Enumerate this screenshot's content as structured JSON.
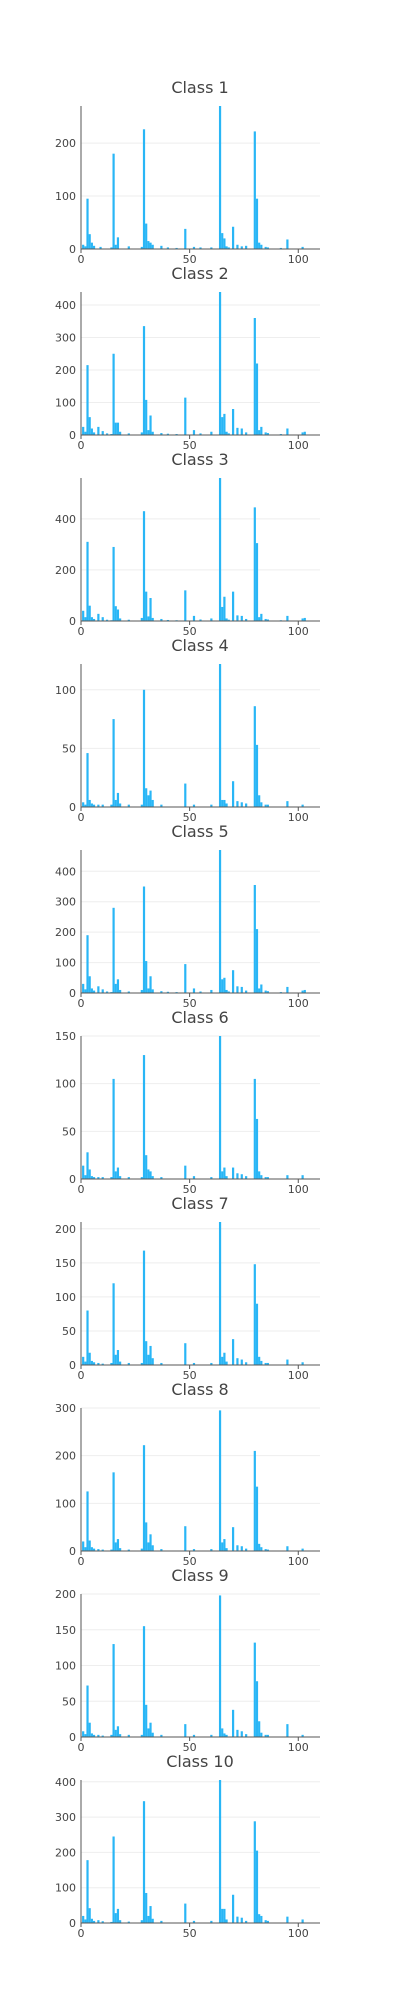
{
  "colors": {
    "bar": "#29b6f6",
    "grid": "#eeeeee",
    "axis": "#555555",
    "text": "#444444"
  },
  "chart_data": [
    {
      "type": "bar",
      "title": "Class 1",
      "xlim": [
        0,
        110
      ],
      "ylim": [
        0,
        270
      ],
      "yticks": [
        0,
        100,
        200
      ],
      "xticks": [
        0,
        50,
        100
      ],
      "grid": true,
      "x": [
        1,
        2,
        3,
        4,
        5,
        6,
        9,
        14,
        15,
        16,
        17,
        22,
        28,
        29,
        30,
        31,
        32,
        33,
        37,
        40,
        44,
        48,
        52,
        55,
        60,
        64,
        65,
        66,
        67,
        68,
        70,
        72,
        74,
        76,
        80,
        81,
        82,
        83,
        85,
        86,
        92,
        95,
        102
      ],
      "values": [
        8,
        5,
        95,
        28,
        12,
        6,
        4,
        3,
        180,
        8,
        22,
        5,
        4,
        226,
        48,
        15,
        12,
        8,
        6,
        3,
        2,
        38,
        4,
        3,
        3,
        270,
        30,
        20,
        5,
        3,
        42,
        8,
        5,
        6,
        222,
        95,
        12,
        8,
        4,
        3,
        2,
        18,
        4
      ]
    },
    {
      "type": "bar",
      "title": "Class 2",
      "xlim": [
        0,
        110
      ],
      "ylim": [
        0,
        440
      ],
      "yticks": [
        0,
        100,
        200,
        300,
        400
      ],
      "xticks": [
        0,
        50,
        100
      ],
      "grid": true,
      "x": [
        1,
        2,
        3,
        4,
        5,
        6,
        8,
        10,
        12,
        14,
        15,
        16,
        17,
        18,
        22,
        28,
        29,
        30,
        31,
        32,
        33,
        37,
        40,
        44,
        48,
        52,
        55,
        60,
        64,
        65,
        66,
        67,
        68,
        70,
        72,
        74,
        76,
        80,
        81,
        82,
        83,
        85,
        86,
        92,
        95,
        102,
        103
      ],
      "values": [
        25,
        10,
        215,
        55,
        20,
        8,
        25,
        12,
        5,
        3,
        250,
        38,
        38,
        10,
        5,
        8,
        335,
        108,
        15,
        60,
        10,
        6,
        4,
        3,
        115,
        15,
        5,
        10,
        440,
        55,
        65,
        10,
        5,
        80,
        22,
        20,
        8,
        360,
        220,
        15,
        25,
        8,
        6,
        3,
        20,
        8,
        10
      ]
    },
    {
      "type": "bar",
      "title": "Class 3",
      "xlim": [
        0,
        110
      ],
      "ylim": [
        0,
        560
      ],
      "yticks": [
        0,
        200,
        400
      ],
      "xticks": [
        0,
        50,
        100
      ],
      "grid": true,
      "x": [
        1,
        2,
        3,
        4,
        5,
        6,
        8,
        10,
        12,
        14,
        15,
        16,
        17,
        18,
        22,
        28,
        29,
        30,
        31,
        32,
        33,
        37,
        40,
        44,
        48,
        52,
        55,
        60,
        64,
        65,
        66,
        67,
        68,
        70,
        72,
        74,
        76,
        80,
        81,
        82,
        83,
        85,
        86,
        92,
        95,
        102,
        103
      ],
      "values": [
        40,
        15,
        310,
        60,
        15,
        8,
        28,
        15,
        5,
        3,
        290,
        58,
        45,
        10,
        5,
        12,
        430,
        115,
        18,
        90,
        12,
        8,
        4,
        3,
        120,
        20,
        6,
        10,
        560,
        55,
        95,
        10,
        5,
        115,
        22,
        20,
        8,
        445,
        305,
        15,
        28,
        8,
        6,
        3,
        20,
        10,
        12
      ]
    },
    {
      "type": "bar",
      "title": "Class 4",
      "xlim": [
        0,
        110
      ],
      "ylim": [
        0,
        122
      ],
      "yticks": [
        0,
        50,
        100
      ],
      "xticks": [
        0,
        50,
        100
      ],
      "grid": true,
      "x": [
        1,
        2,
        3,
        4,
        5,
        6,
        8,
        10,
        14,
        15,
        16,
        17,
        18,
        22,
        28,
        29,
        30,
        31,
        32,
        33,
        37,
        48,
        52,
        60,
        64,
        65,
        66,
        67,
        70,
        72,
        74,
        76,
        80,
        81,
        82,
        83,
        85,
        86,
        95,
        102
      ],
      "values": [
        4,
        2,
        46,
        6,
        3,
        2,
        2,
        2,
        2,
        75,
        6,
        12,
        3,
        2,
        2,
        100,
        16,
        10,
        14,
        6,
        2,
        20,
        2,
        2,
        122,
        6,
        6,
        3,
        22,
        5,
        4,
        3,
        86,
        53,
        10,
        4,
        2,
        2,
        5,
        2
      ]
    },
    {
      "type": "bar",
      "title": "Class 5",
      "xlim": [
        0,
        110
      ],
      "ylim": [
        0,
        470
      ],
      "yticks": [
        0,
        100,
        200,
        300,
        400
      ],
      "xticks": [
        0,
        50,
        100
      ],
      "grid": true,
      "x": [
        1,
        2,
        3,
        4,
        5,
        6,
        8,
        10,
        12,
        14,
        15,
        16,
        17,
        18,
        22,
        28,
        29,
        30,
        31,
        32,
        33,
        37,
        40,
        44,
        48,
        52,
        55,
        60,
        64,
        65,
        66,
        67,
        68,
        70,
        72,
        74,
        76,
        80,
        81,
        82,
        83,
        85,
        86,
        92,
        95,
        102,
        103
      ],
      "values": [
        30,
        12,
        190,
        55,
        15,
        8,
        22,
        12,
        5,
        3,
        280,
        30,
        45,
        10,
        5,
        10,
        350,
        105,
        15,
        55,
        12,
        6,
        4,
        3,
        95,
        15,
        5,
        10,
        470,
        45,
        50,
        10,
        5,
        75,
        22,
        20,
        8,
        355,
        210,
        15,
        28,
        8,
        6,
        3,
        20,
        8,
        10
      ]
    },
    {
      "type": "bar",
      "title": "Class 6",
      "xlim": [
        0,
        110
      ],
      "ylim": [
        0,
        150
      ],
      "yticks": [
        0,
        50,
        100,
        150
      ],
      "xticks": [
        0,
        50,
        100
      ],
      "grid": true,
      "x": [
        1,
        2,
        3,
        4,
        5,
        6,
        8,
        10,
        14,
        15,
        16,
        17,
        18,
        22,
        28,
        29,
        30,
        31,
        32,
        33,
        37,
        48,
        52,
        60,
        64,
        65,
        66,
        67,
        70,
        72,
        74,
        76,
        80,
        81,
        82,
        83,
        85,
        86,
        95,
        102
      ],
      "values": [
        14,
        4,
        28,
        10,
        3,
        2,
        2,
        2,
        2,
        105,
        8,
        12,
        3,
        2,
        2,
        130,
        25,
        10,
        8,
        3,
        2,
        14,
        3,
        2,
        150,
        8,
        12,
        3,
        12,
        6,
        5,
        3,
        105,
        63,
        8,
        4,
        2,
        2,
        4,
        4
      ]
    },
    {
      "type": "bar",
      "title": "Class 7",
      "xlim": [
        0,
        110
      ],
      "ylim": [
        0,
        210
      ],
      "yticks": [
        0,
        50,
        100,
        150,
        200
      ],
      "xticks": [
        0,
        50,
        100
      ],
      "grid": true,
      "x": [
        1,
        2,
        3,
        4,
        5,
        6,
        8,
        10,
        14,
        15,
        16,
        17,
        18,
        22,
        28,
        29,
        30,
        31,
        32,
        33,
        37,
        48,
        52,
        60,
        64,
        65,
        66,
        67,
        70,
        72,
        74,
        76,
        80,
        81,
        82,
        83,
        85,
        86,
        95,
        102
      ],
      "values": [
        12,
        5,
        80,
        18,
        6,
        4,
        3,
        2,
        3,
        120,
        15,
        22,
        5,
        3,
        3,
        168,
        35,
        15,
        28,
        10,
        3,
        32,
        3,
        3,
        210,
        12,
        18,
        5,
        38,
        10,
        8,
        4,
        148,
        90,
        12,
        6,
        3,
        3,
        8,
        4
      ]
    },
    {
      "type": "bar",
      "title": "Class 8",
      "xlim": [
        0,
        110
      ],
      "ylim": [
        0,
        300
      ],
      "yticks": [
        0,
        100,
        200,
        300
      ],
      "xticks": [
        0,
        50,
        100
      ],
      "grid": true,
      "x": [
        1,
        2,
        3,
        4,
        5,
        6,
        8,
        10,
        14,
        15,
        16,
        17,
        18,
        22,
        28,
        29,
        30,
        31,
        32,
        33,
        37,
        48,
        52,
        60,
        64,
        65,
        66,
        67,
        70,
        72,
        74,
        76,
        80,
        81,
        82,
        83,
        85,
        86,
        95,
        102
      ],
      "values": [
        20,
        8,
        125,
        22,
        8,
        5,
        4,
        3,
        3,
        165,
        18,
        25,
        6,
        3,
        5,
        222,
        60,
        18,
        35,
        12,
        4,
        52,
        4,
        4,
        295,
        18,
        25,
        6,
        50,
        12,
        10,
        5,
        210,
        135,
        15,
        8,
        4,
        3,
        10,
        5
      ]
    },
    {
      "type": "bar",
      "title": "Class 9",
      "xlim": [
        0,
        110
      ],
      "ylim": [
        0,
        200
      ],
      "yticks": [
        0,
        50,
        100,
        150,
        200
      ],
      "xticks": [
        0,
        50,
        100
      ],
      "grid": true,
      "x": [
        1,
        2,
        3,
        4,
        5,
        6,
        8,
        10,
        14,
        15,
        16,
        17,
        18,
        22,
        28,
        29,
        30,
        31,
        32,
        33,
        37,
        48,
        52,
        60,
        64,
        65,
        66,
        67,
        70,
        72,
        74,
        76,
        80,
        81,
        82,
        83,
        85,
        86,
        95,
        102
      ],
      "values": [
        8,
        4,
        72,
        20,
        5,
        3,
        3,
        2,
        3,
        130,
        10,
        15,
        4,
        3,
        3,
        155,
        45,
        12,
        20,
        6,
        3,
        18,
        3,
        3,
        198,
        12,
        5,
        3,
        38,
        10,
        8,
        4,
        132,
        78,
        22,
        6,
        3,
        3,
        18,
        3
      ]
    },
    {
      "type": "bar",
      "title": "Class 10",
      "xlim": [
        0,
        110
      ],
      "ylim": [
        0,
        405
      ],
      "yticks": [
        0,
        100,
        200,
        300,
        400
      ],
      "xticks": [
        0,
        50,
        100
      ],
      "grid": true,
      "x": [
        1,
        2,
        3,
        4,
        5,
        6,
        8,
        10,
        14,
        15,
        16,
        17,
        18,
        22,
        28,
        29,
        30,
        31,
        32,
        33,
        37,
        48,
        52,
        60,
        64,
        65,
        66,
        67,
        70,
        72,
        74,
        76,
        80,
        81,
        82,
        83,
        85,
        86,
        95,
        102
      ],
      "values": [
        20,
        10,
        178,
        42,
        12,
        6,
        8,
        5,
        3,
        245,
        28,
        40,
        8,
        4,
        8,
        345,
        85,
        20,
        48,
        12,
        6,
        55,
        6,
        6,
        405,
        40,
        40,
        10,
        80,
        18,
        15,
        6,
        288,
        205,
        25,
        20,
        8,
        6,
        18,
        10
      ]
    }
  ]
}
